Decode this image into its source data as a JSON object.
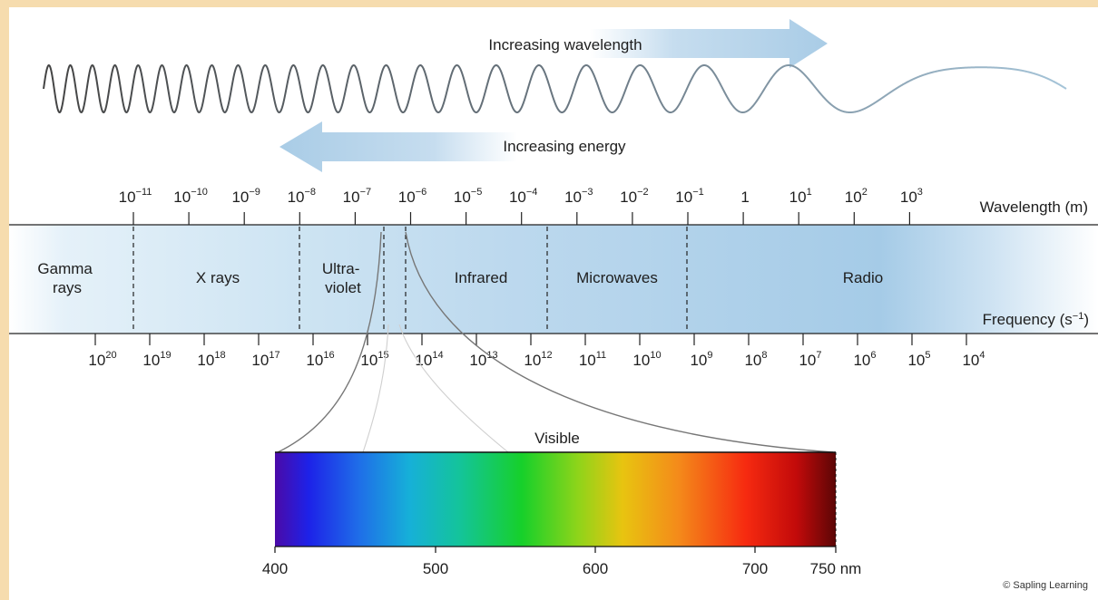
{
  "arrows": {
    "wavelength_label": "Increasing wavelength",
    "energy_label": "Increasing energy"
  },
  "scale": {
    "wavelength_title": "Wavelength (m)",
    "frequency_title": "Frequency (s",
    "frequency_unit_exp": "−1",
    "frequency_unit_close": ")",
    "wavelength_ticks": [
      {
        "base": "10",
        "exp": "−11"
      },
      {
        "base": "10",
        "exp": "−10"
      },
      {
        "base": "10",
        "exp": "−9"
      },
      {
        "base": "10",
        "exp": "−8"
      },
      {
        "base": "10",
        "exp": "−7"
      },
      {
        "base": "10",
        "exp": "−6"
      },
      {
        "base": "10",
        "exp": "−5"
      },
      {
        "base": "10",
        "exp": "−4"
      },
      {
        "base": "10",
        "exp": "−3"
      },
      {
        "base": "10",
        "exp": "−2"
      },
      {
        "base": "10",
        "exp": "−1"
      },
      {
        "base": "1",
        "exp": ""
      },
      {
        "base": "10",
        "exp": "1"
      },
      {
        "base": "10",
        "exp": "2"
      },
      {
        "base": "10",
        "exp": "3"
      }
    ],
    "frequency_ticks": [
      {
        "base": "10",
        "exp": "20"
      },
      {
        "base": "10",
        "exp": "19"
      },
      {
        "base": "10",
        "exp": "18"
      },
      {
        "base": "10",
        "exp": "17"
      },
      {
        "base": "10",
        "exp": "16"
      },
      {
        "base": "10",
        "exp": "15"
      },
      {
        "base": "10",
        "exp": "14"
      },
      {
        "base": "10",
        "exp": "13"
      },
      {
        "base": "10",
        "exp": "12"
      },
      {
        "base": "10",
        "exp": "11"
      },
      {
        "base": "10",
        "exp": "10"
      },
      {
        "base": "10",
        "exp": "9"
      },
      {
        "base": "10",
        "exp": "8"
      },
      {
        "base": "10",
        "exp": "7"
      },
      {
        "base": "10",
        "exp": "6"
      },
      {
        "base": "10",
        "exp": "5"
      },
      {
        "base": "10",
        "exp": "4"
      }
    ]
  },
  "regions": {
    "gamma": [
      "Gamma",
      "rays"
    ],
    "xrays": "X rays",
    "uv": [
      "Ultra-",
      "violet"
    ],
    "infrared": "Infrared",
    "microwaves": "Microwaves",
    "radio": "Radio"
  },
  "visible": {
    "label": "Visible",
    "ticks": [
      "400",
      "500",
      "600",
      "700",
      "750 nm"
    ]
  },
  "credit": "© Sapling Learning"
}
